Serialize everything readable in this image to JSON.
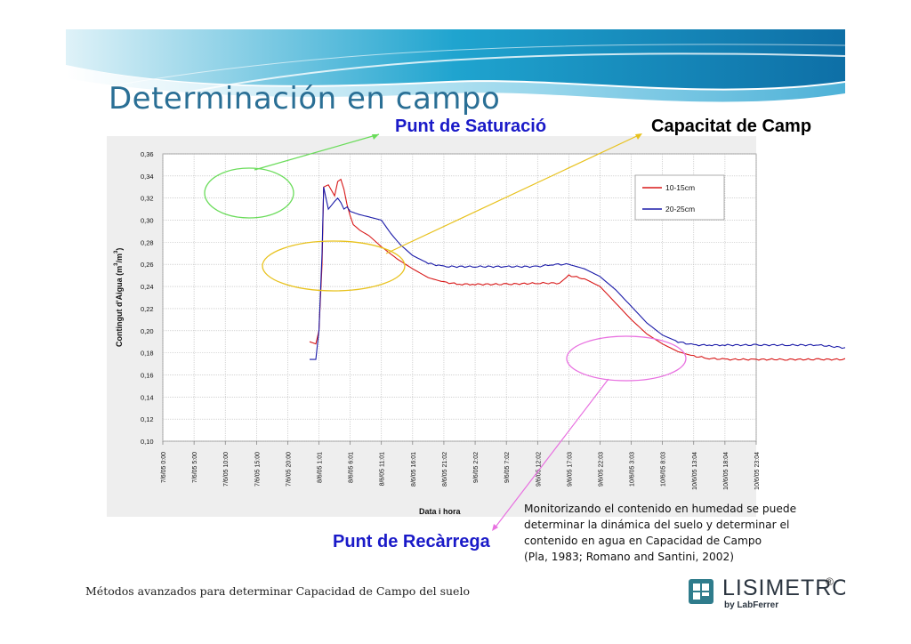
{
  "slide": {
    "title": "Determinación en campo",
    "callouts": {
      "saturation": "Punt de Saturació",
      "capacity": "Capacitat de Camp",
      "recharge": "Punt de Recàrrega"
    },
    "note_lines": [
      "Monitorizando el contenido en humedad se puede",
      "determinar la dinámica del suelo y determinar el",
      "contenido en agua en Capacidad de Campo",
      "(Pla, 1983; Romano and Santini, 2002)"
    ],
    "footer": "Métodos avanzados para determinar Capacidad de Campo del suelo",
    "logo": {
      "word": "LISIMETRO",
      "reg": "®",
      "by": "by LabFerrer"
    },
    "colors": {
      "title": "#2a6f95",
      "callout": "#1a1ac8",
      "swoosh": "#1e9cc7"
    }
  },
  "chart_data": {
    "type": "line",
    "ylabel": "Contingut d'Aigua (m³/m³)",
    "ylabel_parts": {
      "main": "Contingut d'Aigua (m",
      "exp": "3",
      "slash": "/m",
      "exp2": "3",
      "close": ")"
    },
    "xlabel": "Data i hora",
    "ylim": [
      0.1,
      0.36
    ],
    "yticks": [
      "0,10",
      "0,12",
      "0,14",
      "0,16",
      "0,18",
      "0,20",
      "0,22",
      "0,24",
      "0,26",
      "0,28",
      "0,30",
      "0,32",
      "0,34",
      "0,36"
    ],
    "xticks": [
      "7/6/05 0:00",
      "7/6/05 5:00",
      "7/6/05 10:00",
      "7/6/05 15:00",
      "7/6/05 20:00",
      "8/6/05 1:01",
      "8/6/05 6:01",
      "8/6/05 11:01",
      "8/6/05 16:01",
      "8/6/05 21:02",
      "9/6/05 2:02",
      "9/6/05 7:02",
      "9/6/05 12:02",
      "9/6/05 17:03",
      "9/6/05 22:03",
      "10/6/05 3:03",
      "10/6/05 8:03",
      "10/6/05 13:04",
      "10/6/05 18:04",
      "10/6/05 23:04"
    ],
    "grid": true,
    "legend": "top-right",
    "series": [
      {
        "name": "10-15cm",
        "color": "#d81818",
        "x": [
          4.7,
          4.9,
          5.0,
          5.1,
          5.15,
          5.3,
          5.5,
          5.6,
          5.7,
          5.8,
          5.9,
          6.0,
          6.1,
          6.3,
          6.6,
          7.0,
          7.5,
          8.0,
          8.5,
          9.0,
          9.5,
          10.0,
          11.0,
          12.0,
          12.7,
          13.0,
          13.5,
          14.0,
          14.5,
          15.0,
          15.5,
          16.0,
          16.5,
          17.0,
          17.5,
          18.0,
          19.0,
          20.0,
          21.0,
          22.0,
          23.0,
          24.0,
          25.0,
          26.0,
          27.0,
          28.0,
          28.8
        ],
        "y": [
          0.19,
          0.188,
          0.2,
          0.26,
          0.33,
          0.332,
          0.322,
          0.335,
          0.337,
          0.328,
          0.314,
          0.304,
          0.296,
          0.291,
          0.286,
          0.276,
          0.265,
          0.256,
          0.248,
          0.244,
          0.242,
          0.242,
          0.242,
          0.243,
          0.243,
          0.25,
          0.247,
          0.24,
          0.225,
          0.21,
          0.197,
          0.188,
          0.181,
          0.177,
          0.175,
          0.174,
          0.174,
          0.174,
          0.174,
          0.174,
          0.172,
          0.169,
          0.167,
          0.168,
          0.168,
          0.168,
          0.168
        ]
      },
      {
        "name": "20-25cm",
        "color": "#1a1aa8",
        "x": [
          4.7,
          4.9,
          5.0,
          5.1,
          5.15,
          5.3,
          5.5,
          5.6,
          5.7,
          5.8,
          5.9,
          6.0,
          6.3,
          6.6,
          7.0,
          7.3,
          7.6,
          8.0,
          8.5,
          9.0,
          10.0,
          11.0,
          12.0,
          12.5,
          13.0,
          13.5,
          14.0,
          14.5,
          15.0,
          15.5,
          16.0,
          16.5,
          17.0,
          17.5,
          18.0,
          19.0,
          20.0,
          21.0,
          22.0,
          23.0,
          24.0,
          25.0,
          26.0,
          27.0,
          28.0,
          28.8
        ],
        "y": [
          0.174,
          0.174,
          0.2,
          0.27,
          0.33,
          0.31,
          0.317,
          0.32,
          0.316,
          0.31,
          0.312,
          0.308,
          0.305,
          0.303,
          0.3,
          0.288,
          0.278,
          0.268,
          0.261,
          0.258,
          0.258,
          0.258,
          0.258,
          0.26,
          0.26,
          0.256,
          0.249,
          0.237,
          0.222,
          0.207,
          0.196,
          0.19,
          0.187,
          0.187,
          0.187,
          0.187,
          0.187,
          0.187,
          0.184,
          0.18,
          0.178,
          0.176,
          0.176,
          0.176,
          0.176,
          0.176
        ]
      }
    ]
  }
}
